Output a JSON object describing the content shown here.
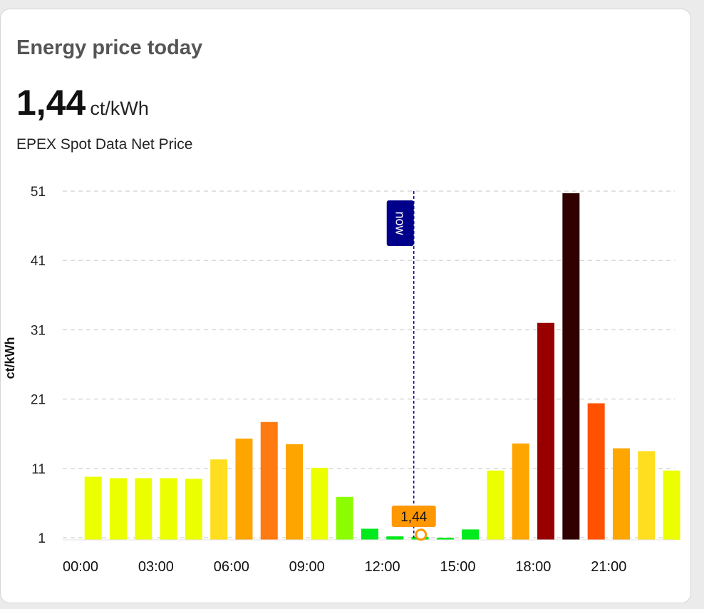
{
  "card": {
    "title": "Energy price today",
    "current_value": "1,44",
    "current_unit": "ct/kWh",
    "subtitle": "EPEX Spot Data Net Price"
  },
  "chart_data": {
    "type": "bar",
    "ylabel": "ct/kWh",
    "ylim": [
      1,
      51
    ],
    "yticks": [
      "1",
      "11",
      "21",
      "31",
      "41",
      "51"
    ],
    "xticks": [
      "00:00",
      "03:00",
      "06:00",
      "09:00",
      "12:00",
      "15:00",
      "18:00",
      "21:00"
    ],
    "categories": [
      "00:00",
      "01:00",
      "02:00",
      "03:00",
      "04:00",
      "05:00",
      "06:00",
      "07:00",
      "08:00",
      "09:00",
      "10:00",
      "11:00",
      "12:00",
      "13:00",
      "14:00",
      "15:00",
      "16:00",
      "17:00",
      "18:00",
      "19:00",
      "20:00",
      "21:00",
      "22:00",
      "23:00"
    ],
    "values": [
      10.1,
      9.9,
      9.9,
      9.9,
      9.8,
      12.6,
      15.6,
      18.0,
      14.8,
      11.4,
      7.2,
      2.6,
      1.5,
      1.44,
      1.2,
      2.5,
      11.0,
      14.9,
      32.3,
      51.0,
      20.7,
      14.2,
      13.8,
      11.0
    ],
    "colors": [
      "#ebff00",
      "#ebff00",
      "#ebff00",
      "#ebff00",
      "#ebff00",
      "#ffde20",
      "#ffa500",
      "#ff7a10",
      "#ffa500",
      "#ebff00",
      "#8cfc00",
      "#00ea1d",
      "#00ea1d",
      "#00ea1d",
      "#00ea1d",
      "#00ea1d",
      "#ebff00",
      "#ffa500",
      "#980000",
      "#300000",
      "#ff5100",
      "#ffa500",
      "#ffde20",
      "#ebff00"
    ],
    "grid": "dashed-horizontal",
    "now_marker": {
      "label": "now",
      "hour": 13.25,
      "color": "#00008b"
    },
    "highlight": {
      "label": "1,44",
      "hour": 13.25,
      "value": 1.44,
      "color": "#ff9800"
    }
  }
}
